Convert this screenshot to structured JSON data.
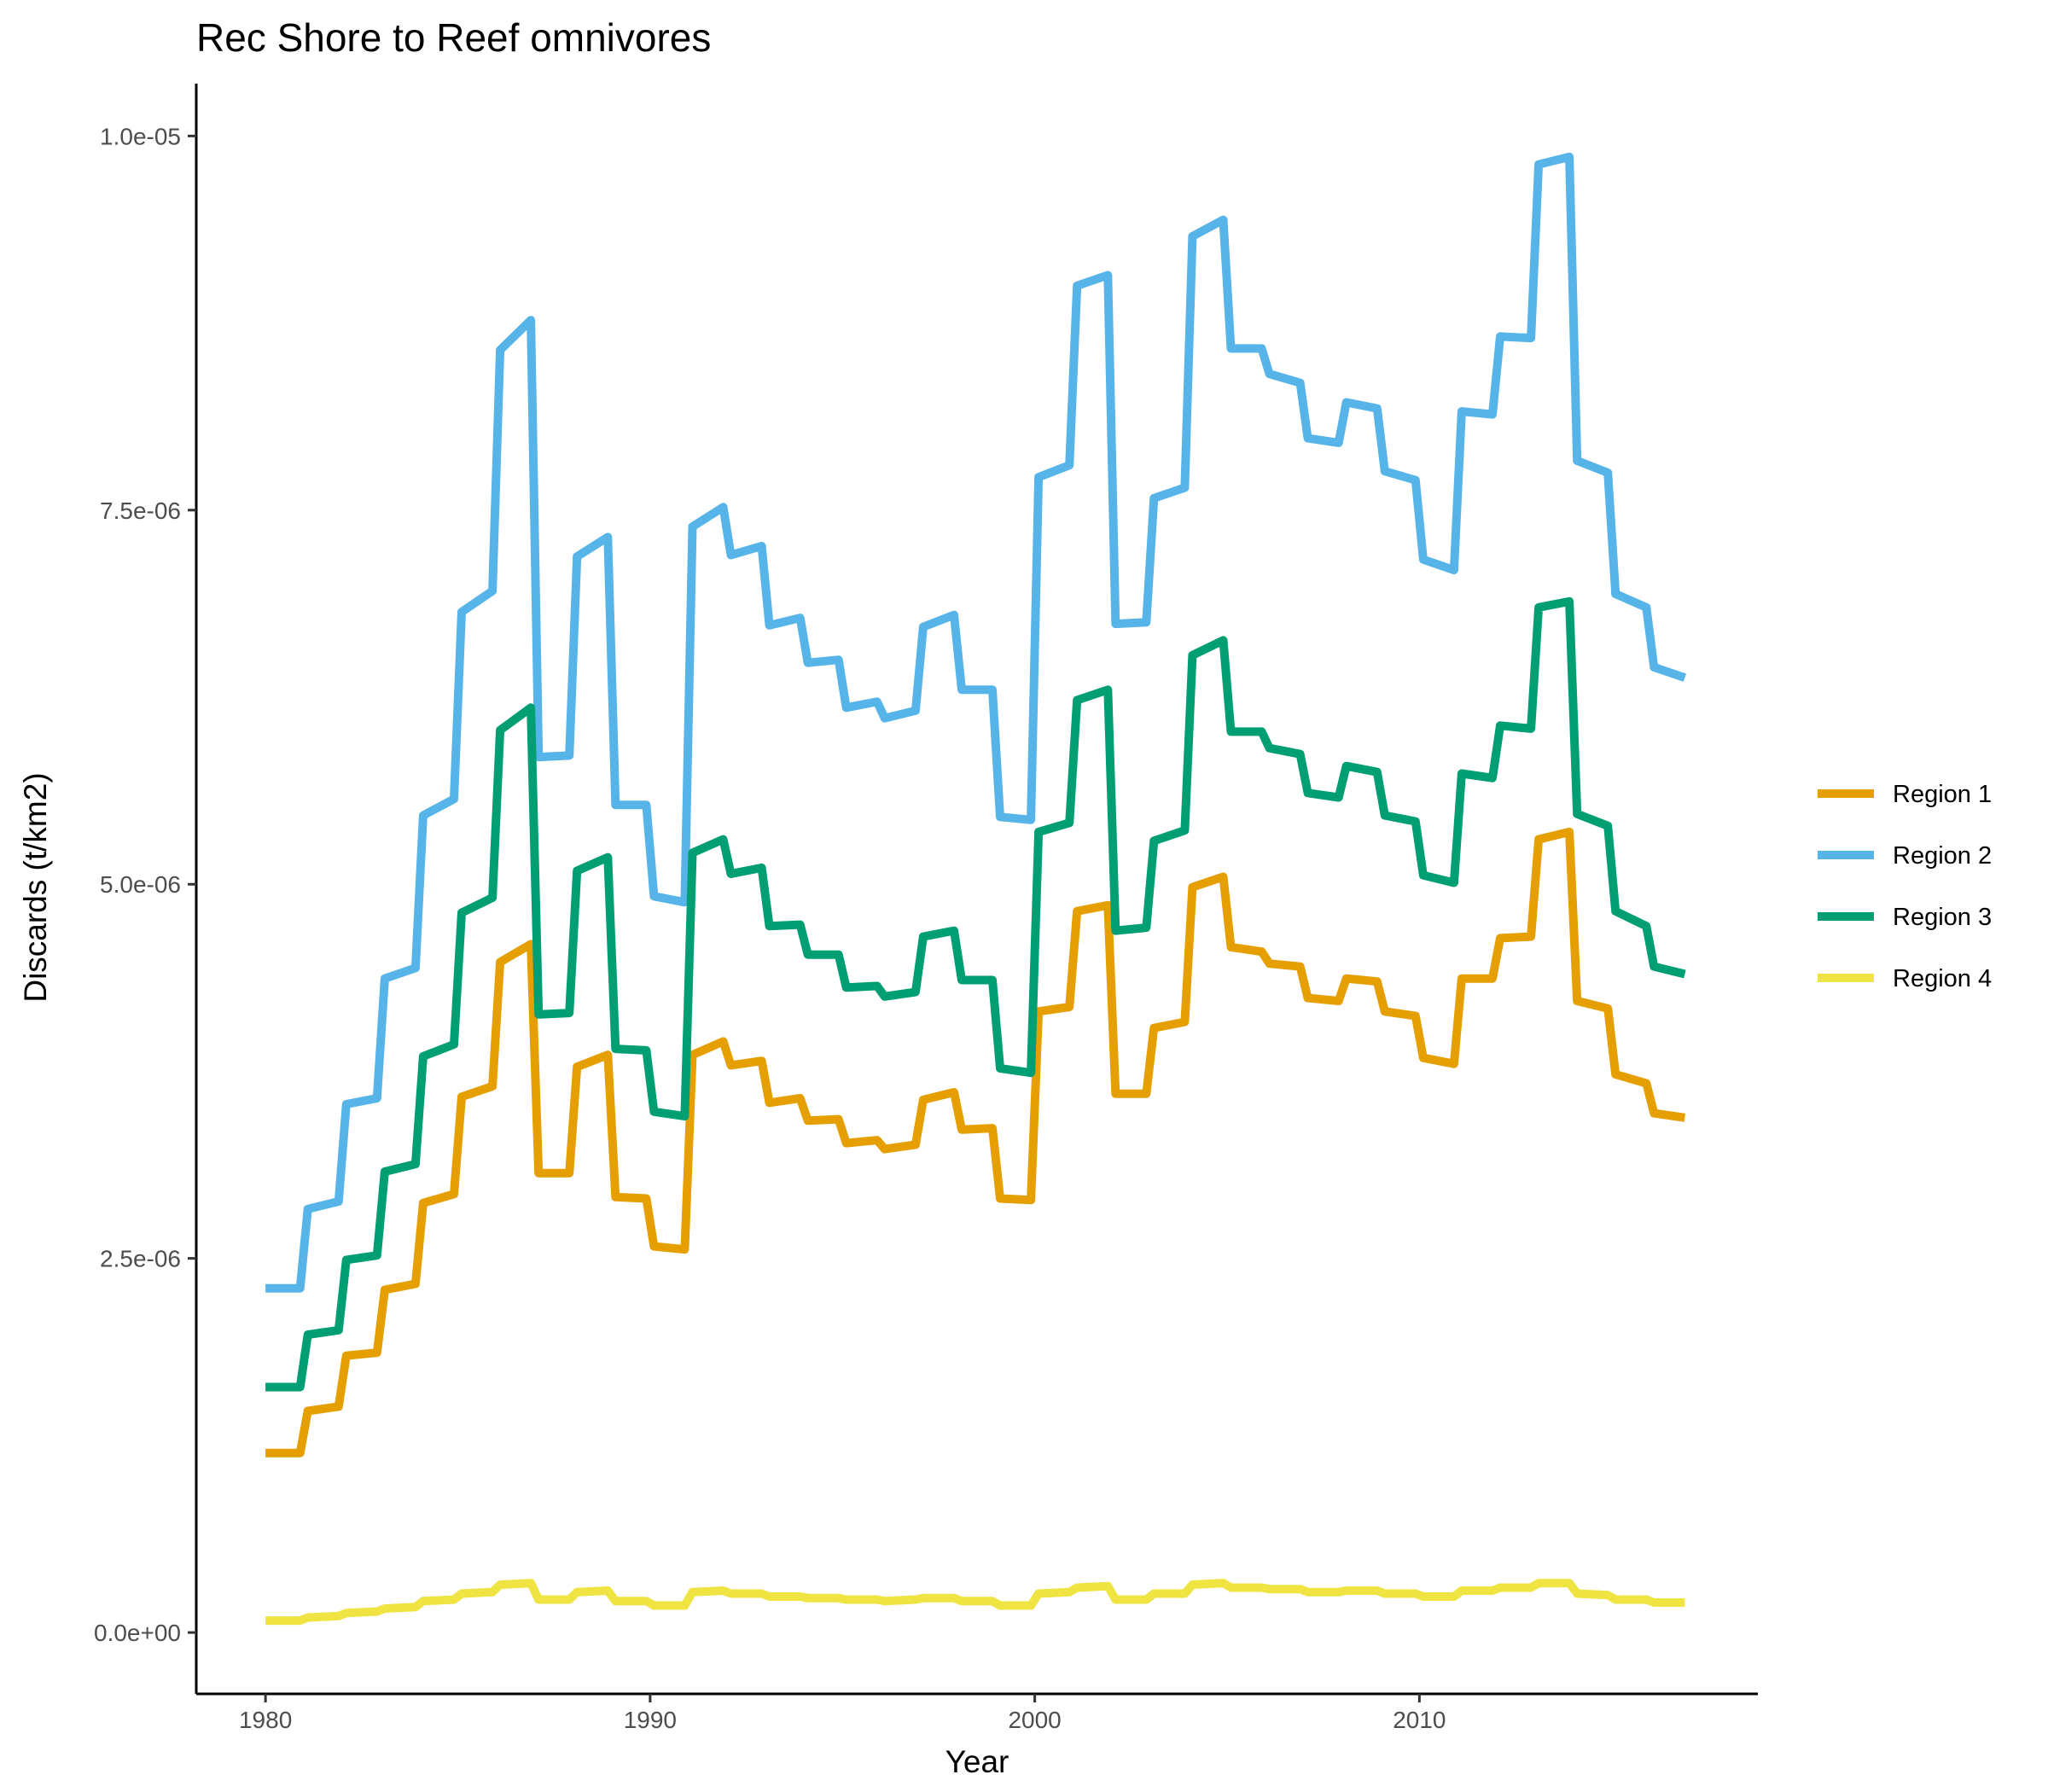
{
  "chart_data": {
    "type": "line",
    "title": "Rec Shore to Reef omnivores",
    "xlabel": "Year",
    "ylabel": "Discards (t/km2)",
    "xlim": [
      1978.2,
      2018.8
    ],
    "ylim": [
      -4.1e-07,
      1.035e-05
    ],
    "xticks": [
      1980,
      1990,
      2000,
      2010
    ],
    "xtick_labels": [
      "1980",
      "1990",
      "2000",
      "2010"
    ],
    "yticks": [
      0,
      2.5e-06,
      5e-06,
      7.5e-06,
      1e-05
    ],
    "ytick_labels": [
      "0.0e+00",
      "2.5e-06",
      "5.0e-06",
      "7.5e-06",
      "1.0e-05"
    ],
    "grid": false,
    "legend_position": "right",
    "x": [
      1980.0,
      1980.9,
      1981.1,
      1981.9,
      1982.1,
      1982.9,
      1983.1,
      1983.9,
      1984.1,
      1984.9,
      1985.1,
      1985.9,
      1986.1,
      1986.9,
      1987.1,
      1987.9,
      1988.1,
      1988.9,
      1989.1,
      1989.9,
      1990.1,
      1990.9,
      1991.1,
      1991.9,
      1992.1,
      1992.9,
      1993.1,
      1993.9,
      1994.1,
      1994.9,
      1995.1,
      1995.9,
      1996.1,
      1996.9,
      1997.1,
      1997.9,
      1998.1,
      1998.9,
      1999.1,
      1999.9,
      2000.1,
      2000.9,
      2001.1,
      2001.9,
      2002.1,
      2002.9,
      2003.1,
      2003.9,
      2004.1,
      2004.9,
      2005.1,
      2005.9,
      2006.1,
      2006.9,
      2007.1,
      2007.9,
      2008.1,
      2008.9,
      2009.1,
      2009.9,
      2010.1,
      2010.9,
      2011.1,
      2011.9,
      2012.1,
      2012.9,
      2013.1,
      2013.9,
      2014.1,
      2014.9,
      2015.1,
      2015.9,
      2016.1,
      2016.9
    ],
    "series": [
      {
        "name": "Region 1",
        "color": "#E69F00",
        "values": [
          1.2e-06,
          1.2e-06,
          1.48e-06,
          1.51e-06,
          1.85e-06,
          1.87e-06,
          2.29e-06,
          2.33e-06,
          2.87e-06,
          2.93e-06,
          3.58e-06,
          3.65e-06,
          4.48e-06,
          4.6e-06,
          3.07e-06,
          3.07e-06,
          3.78e-06,
          3.86e-06,
          2.91e-06,
          2.9e-06,
          2.58e-06,
          2.56e-06,
          3.86e-06,
          3.95e-06,
          3.79e-06,
          3.82e-06,
          3.54e-06,
          3.57e-06,
          3.42e-06,
          3.43e-06,
          3.27e-06,
          3.29e-06,
          3.23e-06,
          3.26e-06,
          3.56e-06,
          3.61e-06,
          3.36e-06,
          3.37e-06,
          2.9e-06,
          2.89e-06,
          4.15e-06,
          4.18e-06,
          4.82e-06,
          4.86e-06,
          3.6e-06,
          3.6e-06,
          4.04e-06,
          4.08e-06,
          4.98e-06,
          5.05e-06,
          4.58e-06,
          4.55e-06,
          4.47e-06,
          4.45e-06,
          4.24e-06,
          4.22e-06,
          4.37e-06,
          4.35e-06,
          4.15e-06,
          4.12e-06,
          3.84e-06,
          3.8e-06,
          4.37e-06,
          4.37e-06,
          4.64e-06,
          4.65e-06,
          5.3e-06,
          5.35e-06,
          4.22e-06,
          4.17e-06,
          3.73e-06,
          3.67e-06,
          3.47e-06,
          3.44e-06
        ]
      },
      {
        "name": "Region 2",
        "color": "#56B4E9",
        "values": [
          2.3e-06,
          2.3e-06,
          2.83e-06,
          2.88e-06,
          3.53e-06,
          3.57e-06,
          4.37e-06,
          4.44e-06,
          5.46e-06,
          5.57e-06,
          6.82e-06,
          6.96e-06,
          8.57e-06,
          8.77e-06,
          5.85e-06,
          5.86e-06,
          7.19e-06,
          7.32e-06,
          5.53e-06,
          5.53e-06,
          4.92e-06,
          4.88e-06,
          7.39e-06,
          7.52e-06,
          7.2e-06,
          7.26e-06,
          6.73e-06,
          6.78e-06,
          6.48e-06,
          6.5e-06,
          6.18e-06,
          6.22e-06,
          6.11e-06,
          6.16e-06,
          6.72e-06,
          6.8e-06,
          6.3e-06,
          6.3e-06,
          5.45e-06,
          5.43e-06,
          7.72e-06,
          7.8e-06,
          9e-06,
          9.07e-06,
          6.74e-06,
          6.75e-06,
          7.58e-06,
          7.65e-06,
          9.33e-06,
          9.44e-06,
          8.58e-06,
          8.58e-06,
          8.41e-06,
          8.35e-06,
          7.98e-06,
          7.95e-06,
          8.22e-06,
          8.18e-06,
          7.76e-06,
          7.7e-06,
          7.17e-06,
          7.1e-06,
          8.16e-06,
          8.14e-06,
          8.66e-06,
          8.65e-06,
          9.81e-06,
          9.86e-06,
          7.83e-06,
          7.75e-06,
          6.94e-06,
          6.85e-06,
          6.45e-06,
          6.38e-06
        ]
      },
      {
        "name": "Region 3",
        "color": "#009E73",
        "values": [
          1.64e-06,
          1.64e-06,
          1.99e-06,
          2.02e-06,
          2.49e-06,
          2.52e-06,
          3.08e-06,
          3.13e-06,
          3.85e-06,
          3.93e-06,
          4.81e-06,
          4.91e-06,
          6.03e-06,
          6.18e-06,
          4.13e-06,
          4.14e-06,
          5.09e-06,
          5.18e-06,
          3.9e-06,
          3.89e-06,
          3.48e-06,
          3.45e-06,
          5.21e-06,
          5.3e-06,
          5.07e-06,
          5.11e-06,
          4.72e-06,
          4.73e-06,
          4.53e-06,
          4.53e-06,
          4.31e-06,
          4.32e-06,
          4.25e-06,
          4.28e-06,
          4.65e-06,
          4.69e-06,
          4.36e-06,
          4.36e-06,
          3.77e-06,
          3.74e-06,
          5.35e-06,
          5.41e-06,
          6.23e-06,
          6.3e-06,
          4.69e-06,
          4.71e-06,
          5.29e-06,
          5.36e-06,
          6.53e-06,
          6.63e-06,
          6.02e-06,
          6.02e-06,
          5.91e-06,
          5.87e-06,
          5.61e-06,
          5.58e-06,
          5.79e-06,
          5.75e-06,
          5.46e-06,
          5.42e-06,
          5.06e-06,
          5.01e-06,
          5.74e-06,
          5.71e-06,
          6.06e-06,
          6.04e-06,
          6.85e-06,
          6.89e-06,
          5.47e-06,
          5.39e-06,
          4.82e-06,
          4.72e-06,
          4.45e-06,
          4.4e-06
        ]
      },
      {
        "name": "Region 4",
        "color": "#F0E442",
        "values": [
          8e-08,
          8e-08,
          1e-07,
          1.1e-07,
          1.3e-07,
          1.4e-07,
          1.6e-07,
          1.7e-07,
          2.1e-07,
          2.2e-07,
          2.6e-07,
          2.7e-07,
          3.2e-07,
          3.3e-07,
          2.2e-07,
          2.2e-07,
          2.7e-07,
          2.8e-07,
          2.1e-07,
          2.1e-07,
          1.8e-07,
          1.8e-07,
          2.7e-07,
          2.8e-07,
          2.6e-07,
          2.6e-07,
          2.4e-07,
          2.4e-07,
          2.3e-07,
          2.3e-07,
          2.2e-07,
          2.2e-07,
          2.1e-07,
          2.2e-07,
          2.3e-07,
          2.3e-07,
          2.1e-07,
          2.1e-07,
          1.8e-07,
          1.8e-07,
          2.6e-07,
          2.7e-07,
          3e-07,
          3.1e-07,
          2.2e-07,
          2.2e-07,
          2.6e-07,
          2.6e-07,
          3.2e-07,
          3.3e-07,
          3e-07,
          3e-07,
          2.9e-07,
          2.9e-07,
          2.7e-07,
          2.7e-07,
          2.8e-07,
          2.8e-07,
          2.6e-07,
          2.6e-07,
          2.4e-07,
          2.4e-07,
          2.8e-07,
          2.8e-07,
          3e-07,
          3e-07,
          3.3e-07,
          3.3e-07,
          2.6e-07,
          2.5e-07,
          2.2e-07,
          2.2e-07,
          2e-07,
          2e-07
        ]
      }
    ]
  }
}
